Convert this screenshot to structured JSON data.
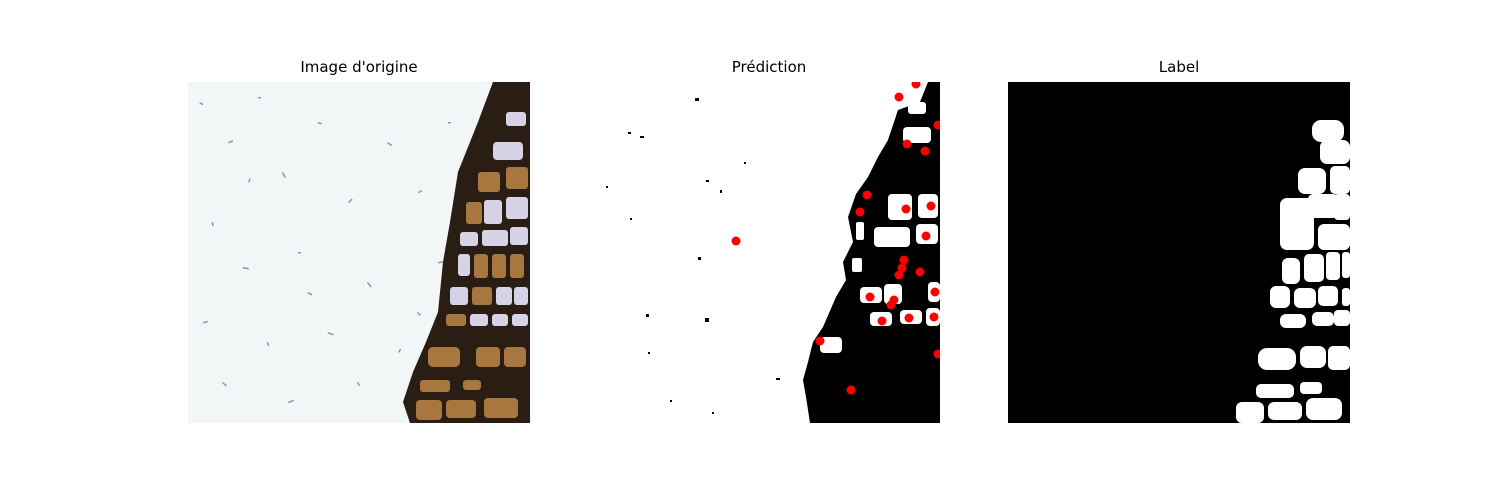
{
  "figure": {
    "panels": [
      {
        "title": "Image d'origine"
      },
      {
        "title": "Prédiction"
      },
      {
        "title": "Label"
      }
    ]
  },
  "colors": {
    "background": "#ffffff",
    "mask_foreground": "#ffffff",
    "mask_background": "#000000",
    "prediction_marker": "#ff0000",
    "tissue_light": "#f3f6f7",
    "speck": "#6a7690",
    "cell_dark": "#2a1d14",
    "cell_lavender": "#d7d3e6",
    "cell_brown": "#a7773f"
  }
}
